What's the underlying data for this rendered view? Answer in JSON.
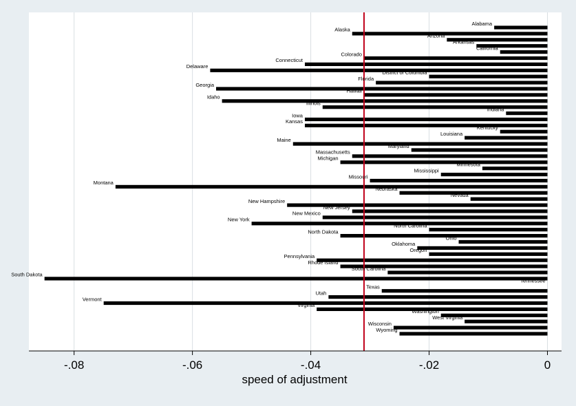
{
  "colors": {
    "background": "#e8eef2",
    "plot_background": "#ffffff",
    "bar": "#000000",
    "gridline": "#d9dee2",
    "reference_line": "#c0001a"
  },
  "chart_data": {
    "type": "bar",
    "orientation": "horizontal",
    "xlabel": "speed of adjustment",
    "xlim": [
      -0.087,
      0.002
    ],
    "xticks": [
      -0.08,
      -0.06,
      -0.04,
      -0.02,
      0
    ],
    "xtick_labels": [
      "-.08",
      "-.06",
      "-.04",
      "-.02",
      "0"
    ],
    "grid": true,
    "reference_line_x": -0.031,
    "categories": [
      "Alabama",
      "Alaska",
      "Arizona",
      "Arkansas",
      "California",
      "Colorado",
      "Connecticut",
      "Delaware",
      "District of Columbia",
      "Florida",
      "Georgia",
      "Hawaii",
      "Idaho",
      "Illinois",
      "Indiana",
      "Iowa",
      "Kansas",
      "Kentucky",
      "Louisiana",
      "Maine",
      "Maryland",
      "Massachusetts",
      "Michigan",
      "Minnesota",
      "Mississippi",
      "Missouri",
      "Montana",
      "Nebraska",
      "Nevada",
      "New Hampshire",
      "New Jersey",
      "New Mexico",
      "New York",
      "North Carolina",
      "North Dakota",
      "Ohio",
      "Oklahoma",
      "Oregon",
      "Pennsylvania",
      "Rhode Island",
      "South Carolina",
      "South Dakota",
      "Tennessee",
      "Texas",
      "Utah",
      "Vermont",
      "Virginia",
      "Washington",
      "West Virginia",
      "Wisconsin",
      "Wyoming"
    ],
    "values": [
      -0.009,
      -0.033,
      -0.017,
      -0.012,
      -0.008,
      -0.031,
      -0.041,
      -0.057,
      -0.02,
      -0.029,
      -0.056,
      -0.031,
      -0.055,
      -0.038,
      -0.007,
      -0.041,
      -0.041,
      -0.008,
      -0.014,
      -0.043,
      -0.023,
      -0.033,
      -0.035,
      -0.011,
      -0.018,
      -0.03,
      -0.073,
      -0.025,
      -0.013,
      -0.044,
      -0.033,
      -0.038,
      -0.05,
      -0.02,
      -0.035,
      -0.015,
      -0.022,
      -0.02,
      -0.039,
      -0.035,
      -0.027,
      -0.085,
      0.0,
      -0.028,
      -0.037,
      -0.075,
      -0.039,
      -0.018,
      -0.014,
      -0.026,
      -0.025
    ]
  }
}
